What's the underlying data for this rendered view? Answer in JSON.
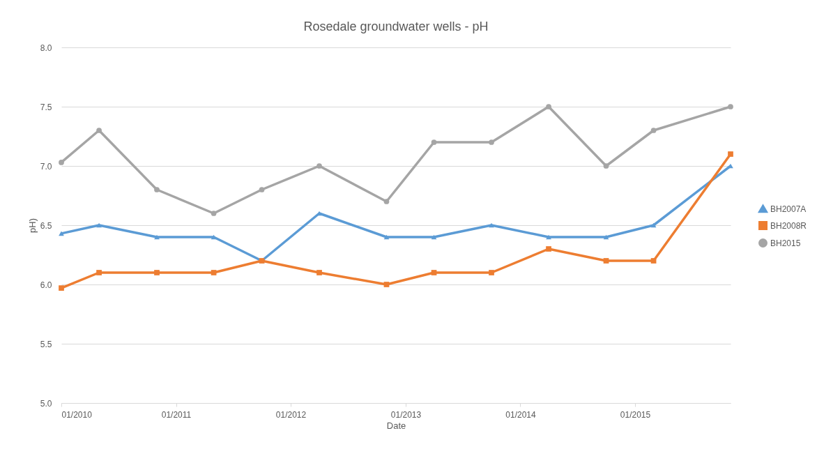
{
  "chart_data": {
    "type": "line",
    "title": "Rosedale groundwater wells - pH",
    "xlabel": "Date",
    "ylabel": "pH)",
    "x": [
      "2010-01-01",
      "2010-05-01",
      "2010-11-01",
      "2011-05-01",
      "2011-10-01",
      "2012-04-01",
      "2012-11-01",
      "2013-04-01",
      "2013-10-01",
      "2014-04-01",
      "2014-10-01",
      "2015-03-01",
      "2015-11-01"
    ],
    "series": [
      {
        "name": "BH2007A",
        "color": "#5b9bd5",
        "marker": "triangle",
        "values": [
          6.43,
          6.5,
          6.4,
          6.4,
          6.2,
          6.6,
          6.4,
          6.4,
          6.5,
          6.4,
          6.4,
          6.5,
          7.0
        ]
      },
      {
        "name": "BH2008R",
        "color": "#ed7d31",
        "marker": "square",
        "values": [
          5.97,
          6.1,
          6.1,
          6.1,
          6.2,
          6.1,
          6.0,
          6.1,
          6.1,
          6.3,
          6.2,
          6.2,
          7.1
        ]
      },
      {
        "name": "BH2015",
        "color": "#a5a5a5",
        "marker": "circle",
        "values": [
          7.03,
          7.3,
          6.8,
          6.6,
          6.8,
          7.0,
          6.7,
          7.2,
          7.2,
          7.5,
          7.0,
          7.3,
          7.5
        ]
      }
    ],
    "xlim": [
      "2010-01-01",
      "2015-11-01"
    ],
    "xticks": [
      {
        "value": "2010-01",
        "label": "01/2010"
      },
      {
        "value": "2011-01",
        "label": "01/2011"
      },
      {
        "value": "2012-01",
        "label": "01/2012"
      },
      {
        "value": "2013-01",
        "label": "01/2013"
      },
      {
        "value": "2014-01",
        "label": "01/2014"
      },
      {
        "value": "2015-01",
        "label": "01/2015"
      }
    ],
    "ylim": [
      5.0,
      8.0
    ],
    "yticks": [
      {
        "value": 5.0,
        "label": "5.0"
      },
      {
        "value": 5.5,
        "label": "5.5"
      },
      {
        "value": 6.0,
        "label": "6.0"
      },
      {
        "value": 6.5,
        "label": "6.5"
      },
      {
        "value": 7.0,
        "label": "7.0"
      },
      {
        "value": 7.5,
        "label": "7.5"
      },
      {
        "value": 8.0,
        "label": "8.0"
      }
    ],
    "grid": "y",
    "legend": "right",
    "line_style": "solid"
  }
}
